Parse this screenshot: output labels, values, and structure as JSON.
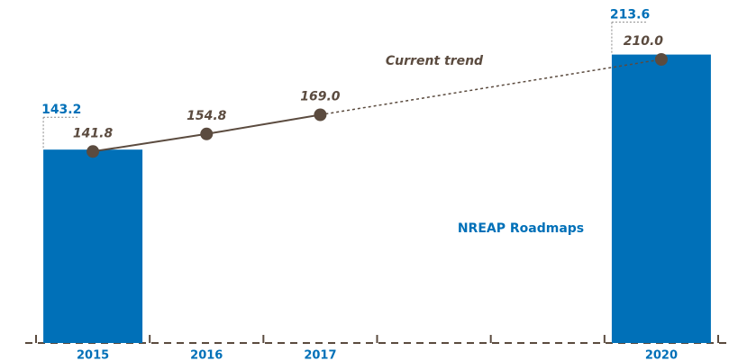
{
  "chart_data": {
    "type": "bar",
    "categories": [
      "2015",
      "2016",
      "2017",
      null,
      null,
      "2020"
    ],
    "ylim": [
      0,
      250
    ],
    "series": [
      {
        "name": "NREAP Roadmaps",
        "type": "bar",
        "color": "#0070b8",
        "values": [
          143.2,
          null,
          null,
          null,
          null,
          213.6
        ]
      },
      {
        "name": "Current trend",
        "type": "line",
        "color": "#5b4b3f",
        "values": [
          141.8,
          154.8,
          169.0,
          null,
          null,
          210.0
        ],
        "value_labels": [
          "141.8",
          "154.8",
          "169.0",
          null,
          null,
          "210.0"
        ]
      }
    ]
  }
}
